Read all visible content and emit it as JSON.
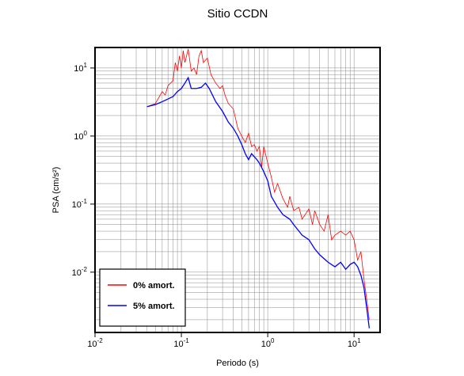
{
  "chart_data": {
    "type": "line",
    "title": "Sitio CCDN",
    "x_label": "Periodo (s)",
    "y_label": "PSA (cm/s²)",
    "log_x": true,
    "log_y": true,
    "grid": true,
    "legend_position": "lower left",
    "xlim": [
      0.01,
      20
    ],
    "ylim": [
      0.0013,
      20
    ],
    "xticks": [
      {
        "value": 0.01,
        "label": "10",
        "exponent": "-2"
      },
      {
        "value": 0.1,
        "label": "10",
        "exponent": "-1"
      },
      {
        "value": 1,
        "label": "10",
        "exponent": "0"
      },
      {
        "value": 10,
        "label": "10",
        "exponent": "1"
      }
    ],
    "yticks": [
      {
        "value": 0.01,
        "label": "10",
        "exponent": "-2"
      },
      {
        "value": 0.1,
        "label": "10",
        "exponent": "-1"
      },
      {
        "value": 1,
        "label": "10",
        "exponent": "0"
      },
      {
        "value": 10,
        "label": "10",
        "exponent": "1"
      }
    ],
    "series": [
      {
        "name": "0% amort.",
        "color": "#ff0000",
        "x": [
          0.04,
          0.05,
          0.06,
          0.065,
          0.07,
          0.08,
          0.085,
          0.09,
          0.095,
          0.1,
          0.105,
          0.11,
          0.12,
          0.13,
          0.14,
          0.15,
          0.16,
          0.17,
          0.18,
          0.2,
          0.22,
          0.25,
          0.28,
          0.3,
          0.32,
          0.35,
          0.4,
          0.45,
          0.5,
          0.55,
          0.6,
          0.65,
          0.7,
          0.75,
          0.8,
          0.85,
          0.9,
          1.0,
          1.1,
          1.2,
          1.3,
          1.5,
          1.7,
          1.8,
          2,
          2.3,
          2.5,
          3,
          3.3,
          3.5,
          4,
          4.5,
          5,
          5.5,
          6,
          7,
          8,
          9,
          10,
          11,
          12,
          13,
          14,
          15
        ],
        "values": [
          2.7,
          3.0,
          4.5,
          4.0,
          5.5,
          6.5,
          12,
          9,
          15,
          10,
          18,
          12,
          19,
          9,
          10,
          8,
          15,
          18,
          12,
          14,
          8,
          6,
          5,
          5.5,
          4,
          3,
          2.5,
          1.3,
          1.0,
          0.8,
          1.1,
          0.7,
          0.75,
          0.6,
          0.7,
          0.35,
          0.7,
          0.4,
          0.25,
          0.15,
          0.2,
          0.12,
          0.09,
          0.13,
          0.08,
          0.09,
          0.06,
          0.085,
          0.05,
          0.08,
          0.05,
          0.04,
          0.07,
          0.03,
          0.035,
          0.04,
          0.035,
          0.04,
          0.03,
          0.015,
          0.02,
          0.008,
          0.004,
          0.002
        ]
      },
      {
        "name": "5% amort.",
        "color": "#0000ff",
        "x": [
          0.04,
          0.05,
          0.06,
          0.07,
          0.08,
          0.09,
          0.1,
          0.11,
          0.12,
          0.13,
          0.15,
          0.17,
          0.19,
          0.21,
          0.25,
          0.3,
          0.35,
          0.4,
          0.45,
          0.5,
          0.55,
          0.6,
          0.65,
          0.75,
          0.8,
          0.9,
          1.0,
          1.1,
          1.3,
          1.5,
          1.8,
          2,
          2.5,
          3,
          3.5,
          4,
          5,
          6,
          7,
          8,
          9,
          10,
          11,
          12,
          13,
          14,
          15
        ],
        "values": [
          2.7,
          2.9,
          3.2,
          3.5,
          3.8,
          4.5,
          5.0,
          6.0,
          7.2,
          5.0,
          5.0,
          5.2,
          6.0,
          5.0,
          3.2,
          2.3,
          1.6,
          1.3,
          1.0,
          0.75,
          0.55,
          0.45,
          0.55,
          0.45,
          0.4,
          0.3,
          0.22,
          0.13,
          0.09,
          0.07,
          0.06,
          0.05,
          0.035,
          0.03,
          0.022,
          0.018,
          0.014,
          0.012,
          0.014,
          0.011,
          0.013,
          0.014,
          0.012,
          0.009,
          0.006,
          0.003,
          0.0015
        ]
      }
    ]
  }
}
